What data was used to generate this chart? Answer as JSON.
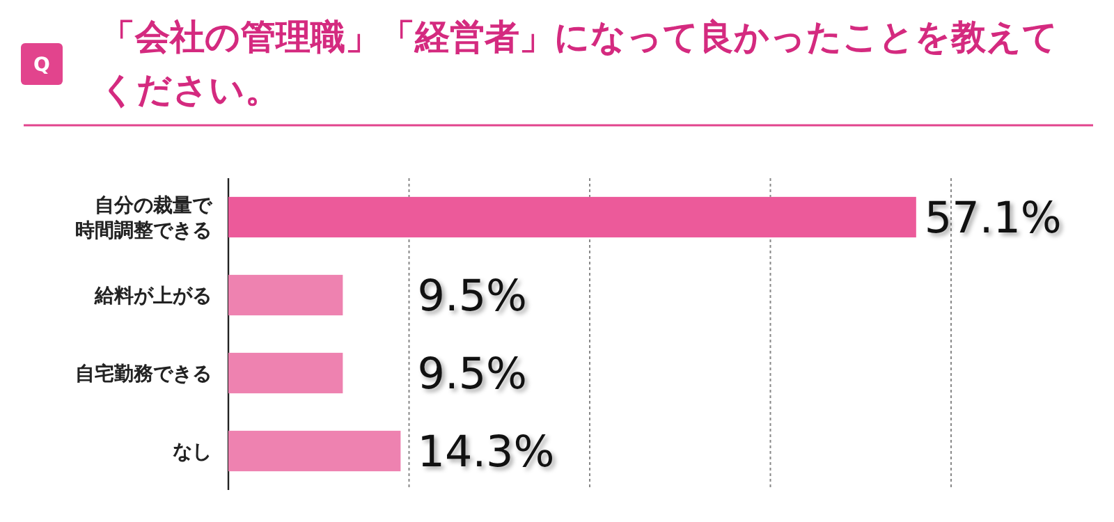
{
  "chart_data": {
    "type": "bar",
    "orientation": "horizontal",
    "title": "「会社の管理職」「経営者」になって良かったことを教えてください。",
    "annotations": [
      "Q"
    ],
    "categories": [
      "自分の裁量で時間調整できる",
      "給料が上がる",
      "自宅勤務できる",
      "なし"
    ],
    "values": [
      57.1,
      9.5,
      9.5,
      14.3
    ],
    "value_labels": [
      "57.1%",
      "9.5%",
      "9.5%",
      "14.3%"
    ],
    "colors": [
      "#ec5a9a",
      "#ee82b0",
      "#ee82b0",
      "#ee82b0"
    ],
    "xlim": [
      0,
      60
    ],
    "xticks": [
      {
        "value": 15,
        "label": null
      },
      {
        "value": 30,
        "label": null
      },
      {
        "value": 45,
        "label": null
      },
      {
        "value": 60,
        "label": null
      }
    ],
    "grid": "x"
  }
}
